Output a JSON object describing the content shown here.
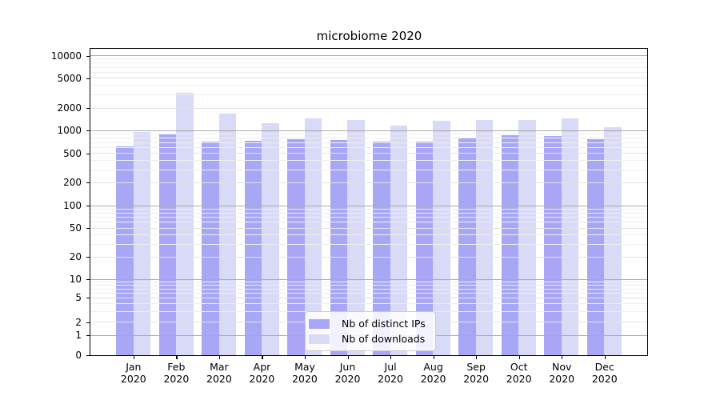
{
  "chart_data": {
    "type": "bar",
    "title": "microbiome 2020",
    "categories": [
      "Jan 2020",
      "Feb 2020",
      "Mar 2020",
      "Apr 2020",
      "May 2020",
      "Jun 2020",
      "Jul 2020",
      "Aug 2020",
      "Sep 2020",
      "Oct 2020",
      "Nov 2020",
      "Dec 2020"
    ],
    "series": [
      {
        "name": "Nb of distinct IPs",
        "color": "#a7a7f6",
        "values": [
          610,
          890,
          715,
          730,
          770,
          750,
          710,
          710,
          795,
          865,
          850,
          765
        ]
      },
      {
        "name": "Nb of downloads",
        "color": "#d9d9f8",
        "values": [
          960,
          3150,
          1670,
          1250,
          1440,
          1360,
          1160,
          1330,
          1360,
          1360,
          1430,
          1110
        ]
      }
    ],
    "xlabel": "",
    "ylabel": "",
    "yscale": "symlog",
    "ylim": [
      0,
      12500
    ],
    "ytick_values": [
      0,
      1,
      2,
      5,
      10,
      20,
      50,
      100,
      200,
      500,
      1000,
      2000,
      5000,
      10000
    ],
    "ytick_labels": [
      "0",
      "1",
      "2",
      "5",
      "10",
      "20",
      "50",
      "100",
      "200",
      "500",
      "1000",
      "2000",
      "5000",
      "10000"
    ],
    "grid": true,
    "legend_position": "lower center"
  }
}
